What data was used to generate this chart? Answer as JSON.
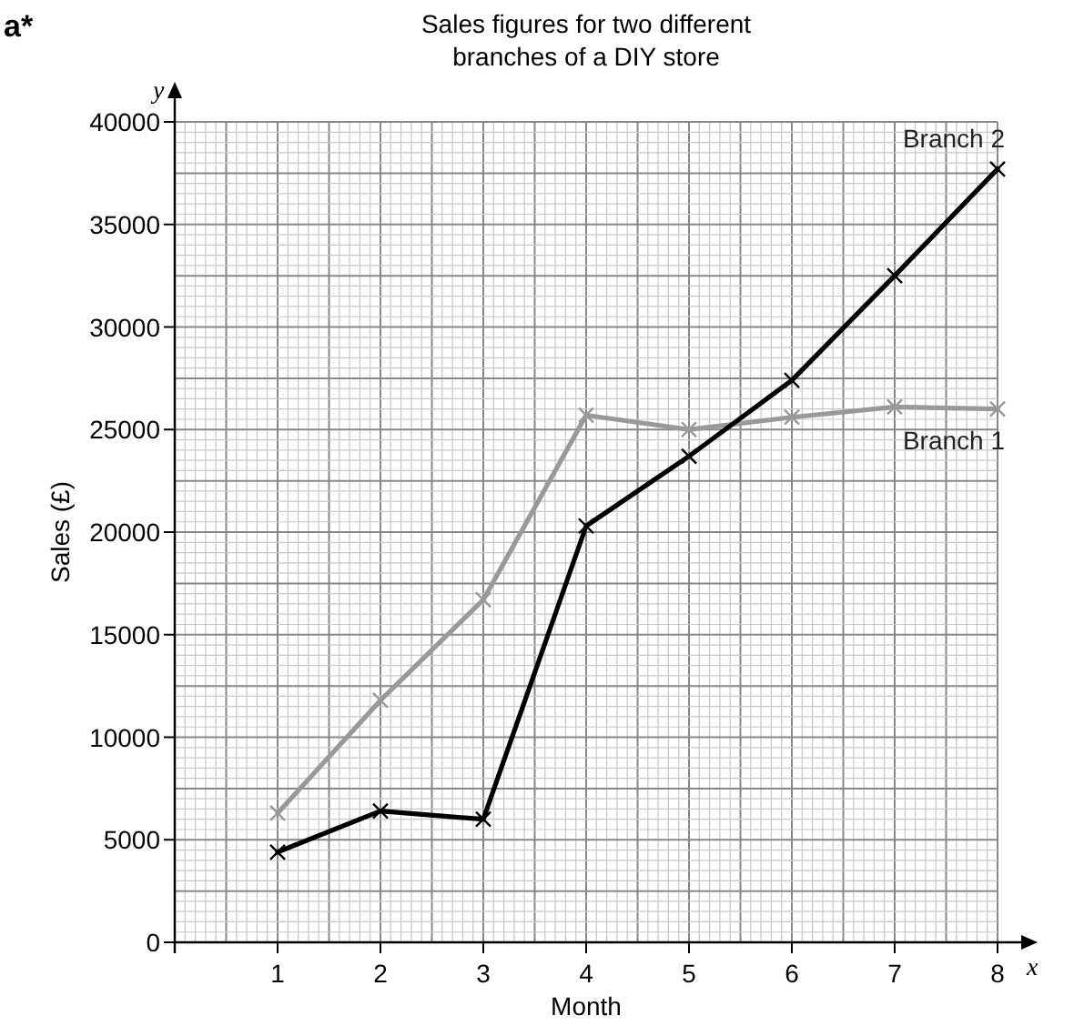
{
  "chart_data": {
    "type": "line",
    "title": "Sales figures for two different\nbranches of a DIY store",
    "xlabel": "Month",
    "ylabel": "Sales (£)",
    "annotations": [
      "a*",
      "y",
      "x"
    ],
    "x": [
      1,
      2,
      3,
      4,
      5,
      6,
      7,
      8
    ],
    "xlim": [
      0,
      8
    ],
    "xticks": [
      1,
      2,
      3,
      4,
      5,
      6,
      7,
      8
    ],
    "ylim": [
      0,
      40000
    ],
    "yticks": [
      0,
      5000,
      10000,
      15000,
      20000,
      25000,
      30000,
      35000,
      40000
    ],
    "grid": true,
    "marker": "cross",
    "line_style": "solid",
    "series": [
      {
        "name": "Branch 1",
        "color": "#999999",
        "values": [
          6300,
          11800,
          16700,
          25700,
          25000,
          25600,
          26100,
          26000
        ]
      },
      {
        "name": "Branch 2",
        "color": "#000000",
        "values": [
          4400,
          6400,
          6000,
          20300,
          23700,
          27400,
          32500,
          37700
        ]
      }
    ]
  }
}
